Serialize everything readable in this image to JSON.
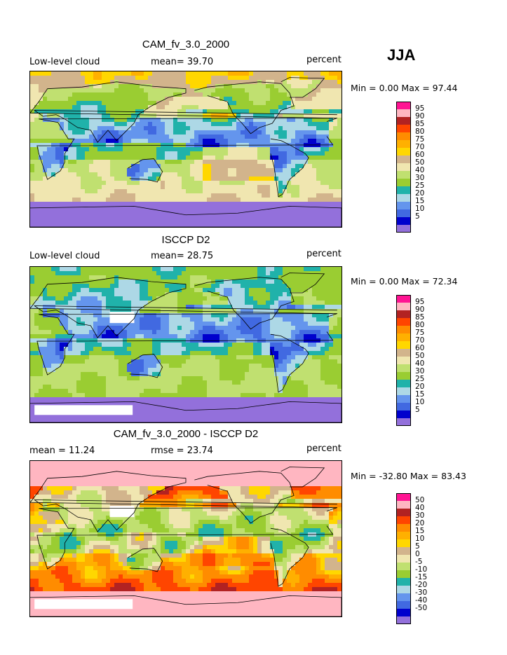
{
  "season": "JJA",
  "colors": {
    "abs_scale": [
      "#9370db",
      "#0000cd",
      "#4169e1",
      "#6495ed",
      "#add8e6",
      "#20b2aa",
      "#9acd32",
      "#c0e070",
      "#f0e6b0",
      "#d2b48c",
      "#ffd700",
      "#ffb000",
      "#ff8c00",
      "#ff4500",
      "#b22222",
      "#ffb6c1",
      "#ff1493"
    ],
    "diff_scale": [
      "#9370db",
      "#0000cd",
      "#4169e1",
      "#6495ed",
      "#add8e6",
      "#20b2aa",
      "#9acd32",
      "#c0e070",
      "#f0e6b0",
      "#d2b48c",
      "#ffd700",
      "#ffb000",
      "#ff8c00",
      "#ff4500",
      "#b22222",
      "#ffb6c1",
      "#ff1493"
    ]
  },
  "panels": [
    {
      "title": "CAM_fv_3.0_2000",
      "left_label": "Low-level cloud",
      "center_label": "mean=  39.70",
      "right_label": "percent",
      "stats": "Min =   0.00 Max =  97.44",
      "legend_ticks": [
        "95",
        "90",
        "85",
        "80",
        "75",
        "70",
        "60",
        "50",
        "40",
        "30",
        "25",
        "20",
        "15",
        "10",
        "5"
      ],
      "style": "model"
    },
    {
      "title": "ISCCP D2",
      "left_label": "Low-level cloud",
      "center_label": "mean=  28.75",
      "right_label": "percent",
      "stats": "Min =   0.00 Max =  72.34",
      "legend_ticks": [
        "95",
        "90",
        "85",
        "80",
        "75",
        "70",
        "60",
        "50",
        "40",
        "30",
        "25",
        "20",
        "15",
        "10",
        "5"
      ],
      "style": "obs"
    },
    {
      "title": "CAM_fv_3.0_2000 - ISCCP D2",
      "left_label": "mean =  11.24",
      "center_label": "rmse =  23.74",
      "right_label": "percent",
      "stats": "Min = -32.80 Max =  83.43",
      "legend_ticks": [
        "50",
        "40",
        "30",
        "20",
        "15",
        "10",
        "5",
        "0",
        "-5",
        "-10",
        "-15",
        "-20",
        "-30",
        "-40",
        "-50"
      ],
      "style": "diff"
    }
  ]
}
